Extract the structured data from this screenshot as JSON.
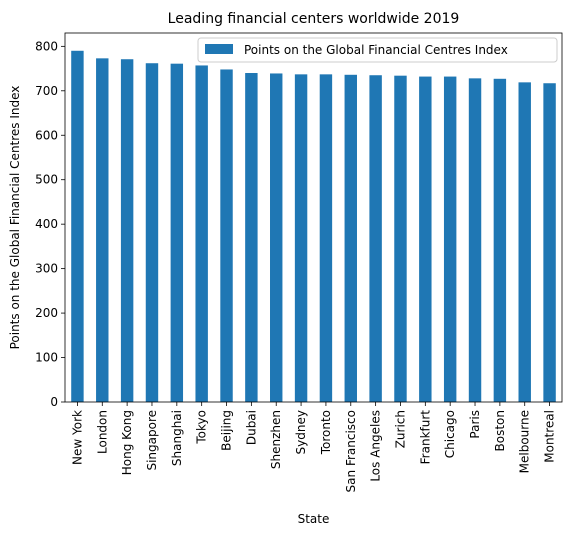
{
  "chart_data": {
    "type": "bar",
    "title": "Leading financial centers worldwide 2019",
    "xlabel": "State",
    "ylabel": "Points on the Global Financial Centres Index",
    "categories": [
      "New York",
      "London",
      "Hong Kong",
      "Singapore",
      "Shanghai",
      "Tokyo",
      "Beijing",
      "Dubai",
      "Shenzhen",
      "Sydney",
      "Toronto",
      "San Francisco",
      "Los Angeles",
      "Zurich",
      "Frankfurt",
      "Chicago",
      "Paris",
      "Boston",
      "Melbourne",
      "Montreal"
    ],
    "series": [
      {
        "name": "Points on the Global Financial Centres Index",
        "values": [
          790,
          773,
          771,
          762,
          761,
          757,
          748,
          740,
          739,
          737,
          737,
          736,
          735,
          734,
          732,
          732,
          728,
          727,
          719,
          717
        ],
        "color": "#1f77b4"
      }
    ],
    "ylim": [
      0,
      830
    ],
    "yticks": [
      0,
      100,
      200,
      300,
      400,
      500,
      600,
      700,
      800
    ],
    "grid": false,
    "legend_position": "top-right"
  }
}
